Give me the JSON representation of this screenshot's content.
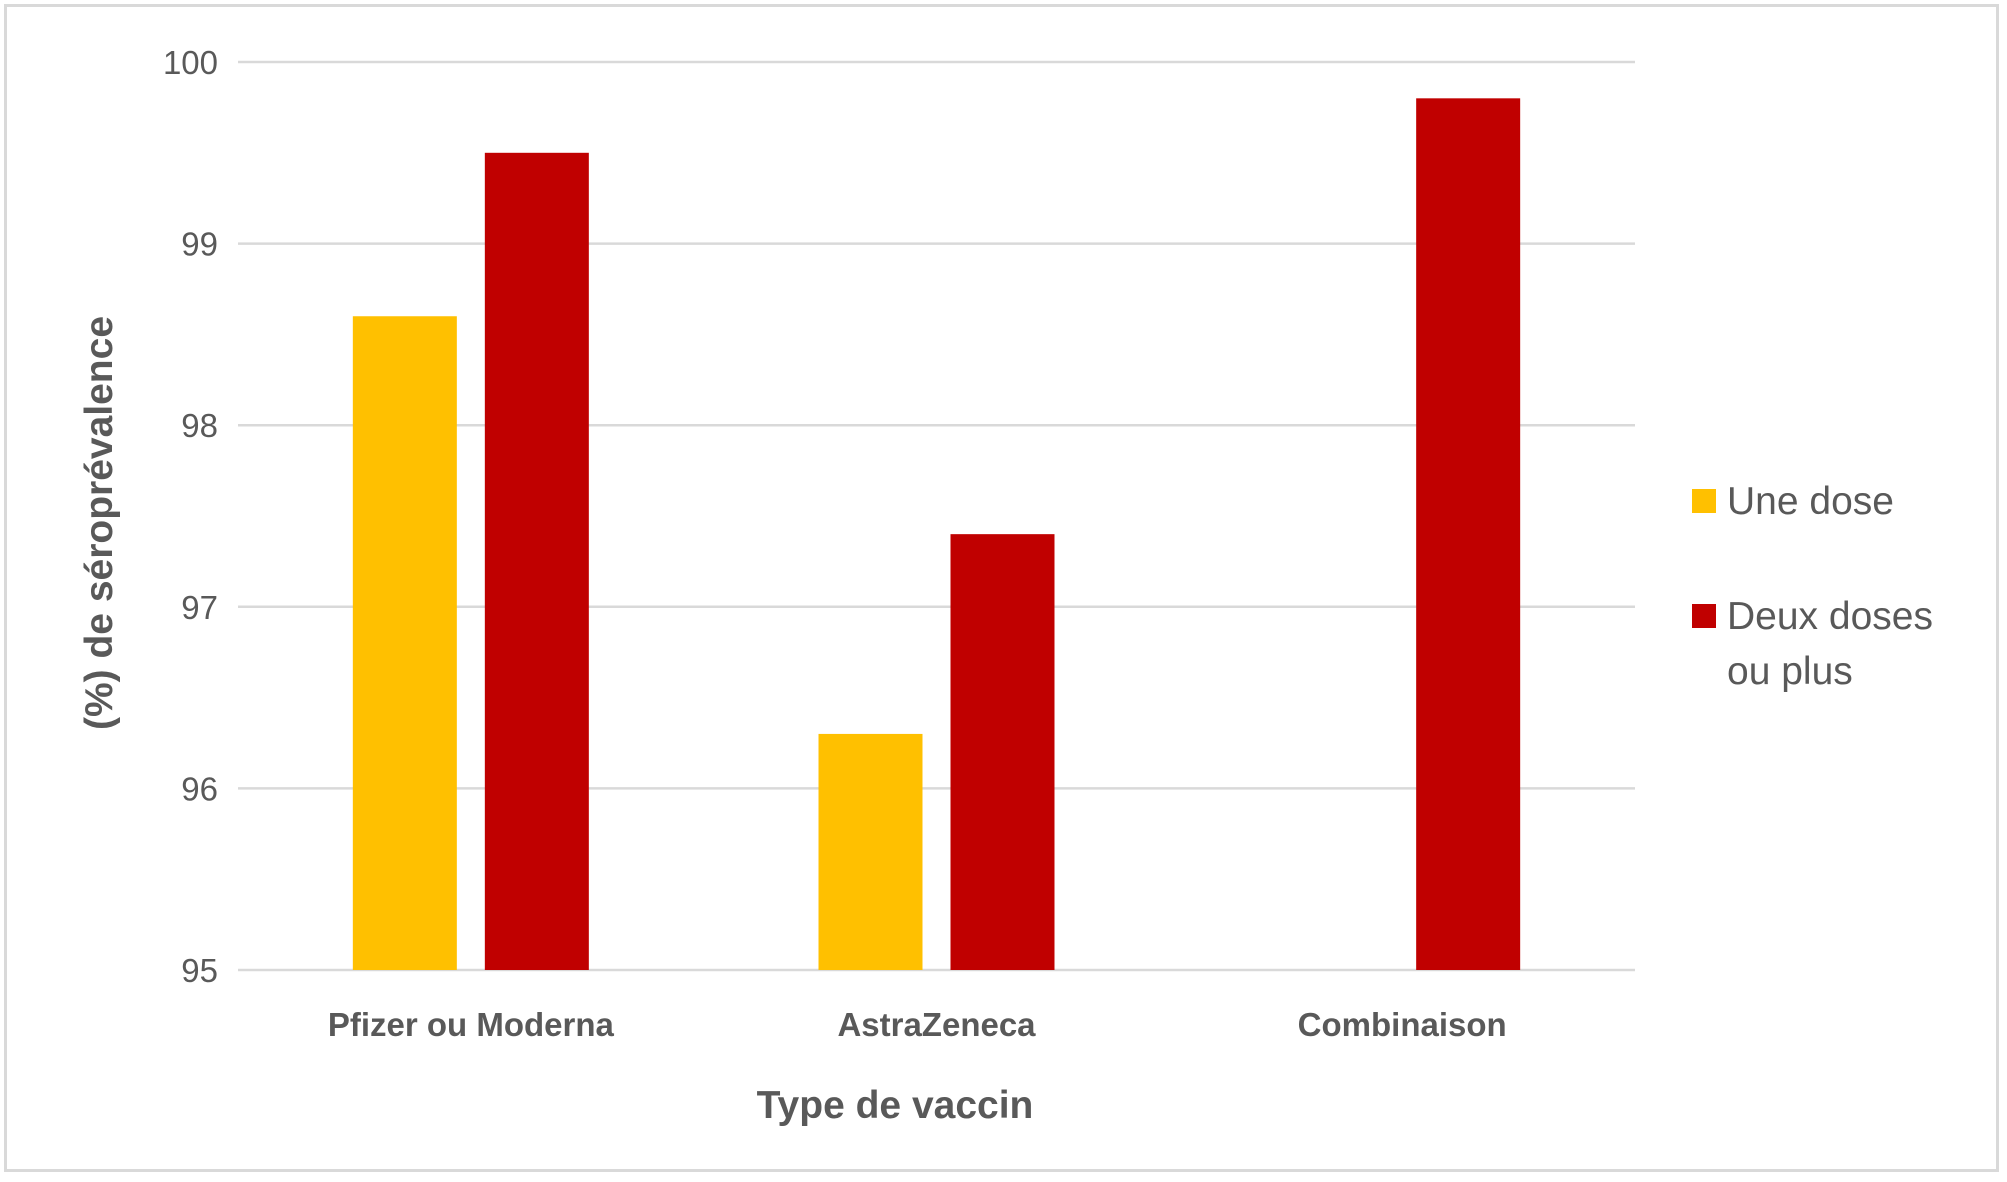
{
  "chart_data": {
    "type": "bar",
    "categories": [
      "Pfizer ou Moderna",
      "AstraZeneca",
      "Combinaison"
    ],
    "series": [
      {
        "name": "Une dose",
        "values": [
          98.6,
          96.3,
          null
        ],
        "color": "#FFC000"
      },
      {
        "name": "Deux doses ou plus",
        "values": [
          99.5,
          97.4,
          99.8
        ],
        "color": "#C00000"
      }
    ],
    "title": "",
    "xlabel": "Type de vaccin",
    "ylabel": "(%) de séroprévalence",
    "ylim": [
      95,
      100
    ],
    "yticks": [
      95,
      96,
      97,
      98,
      99,
      100
    ],
    "grid": true,
    "legend": {
      "position": "right",
      "entries": [
        {
          "lines": [
            "Une dose"
          ]
        },
        {
          "lines": [
            "Deux doses",
            "ou plus"
          ]
        }
      ]
    }
  }
}
